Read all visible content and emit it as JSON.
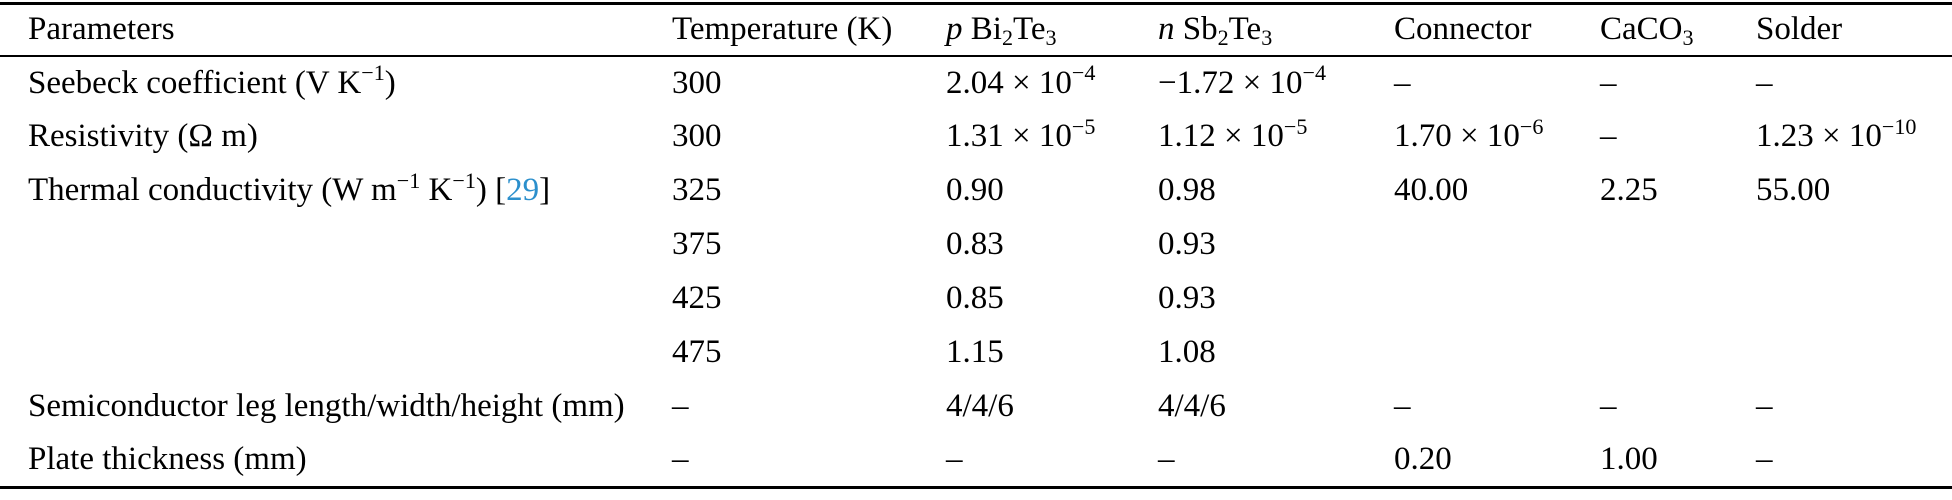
{
  "table": {
    "description": "Thermoelectric module material parameters table",
    "columns": [
      {
        "id": "parameters",
        "label": "Parameters"
      },
      {
        "id": "temperature",
        "label": "Temperature (K)"
      },
      {
        "id": "p-bi2te3",
        "label": "*p* Bi_{2}Te_{3}"
      },
      {
        "id": "n-sb2te3",
        "label": "*n* Sb_{2}Te_{3}"
      },
      {
        "id": "connector",
        "label": "Connector"
      },
      {
        "id": "caco3",
        "label": "CaCO_{3}"
      },
      {
        "id": "solder",
        "label": "Solder"
      }
    ],
    "rows": [
      [
        "Seebeck coefficient (V K^{−1})",
        "300",
        "2.04 × 10^{−4}",
        "−1.72 × 10^{−4}",
        "–",
        "–",
        "–"
      ],
      [
        "Resistivity (Ω m)",
        "300",
        "1.31 × 10^{−5}",
        "1.12 × 10^{−5}",
        "1.70 × 10^{−6}",
        "–",
        "1.23 × 10^{−10}"
      ],
      [
        "Thermal conductivity (W m^{−1} K^{−1}) [{{29}}]",
        "325",
        "0.90",
        "0.98",
        "40.00",
        "2.25",
        "55.00"
      ],
      [
        "",
        "375",
        "0.83",
        "0.93",
        "",
        "",
        ""
      ],
      [
        "",
        "425",
        "0.85",
        "0.93",
        "",
        "",
        ""
      ],
      [
        "",
        "475",
        "1.15",
        "1.08",
        "",
        "",
        ""
      ],
      [
        "Semiconductor leg length/width/height (mm)",
        "–",
        "4/4/6",
        "4/4/6",
        "–",
        "–",
        "–"
      ],
      [
        "Plate thickness (mm)",
        "–",
        "–",
        "–",
        "0.20",
        "1.00",
        "–"
      ]
    ],
    "citation": {
      "label": "29"
    }
  },
  "colors": {
    "text": "#000000",
    "citation_link": "#2b8fcc",
    "rule": "#000000",
    "background": "#ffffff"
  }
}
